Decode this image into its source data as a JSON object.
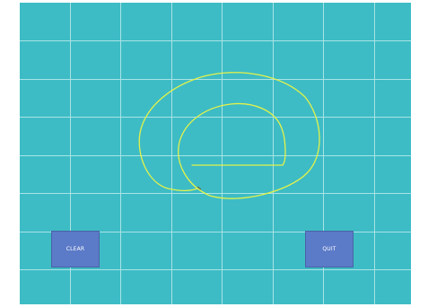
{
  "canvas": {
    "background_color": "#3dbcc5",
    "grid_color": "#a9e3e6",
    "stroke_color": "#e4f24a"
  },
  "buttons": {
    "clear_label": "CLEAR",
    "quit_label": "QUIT",
    "button_color": "#5b7ac8"
  }
}
